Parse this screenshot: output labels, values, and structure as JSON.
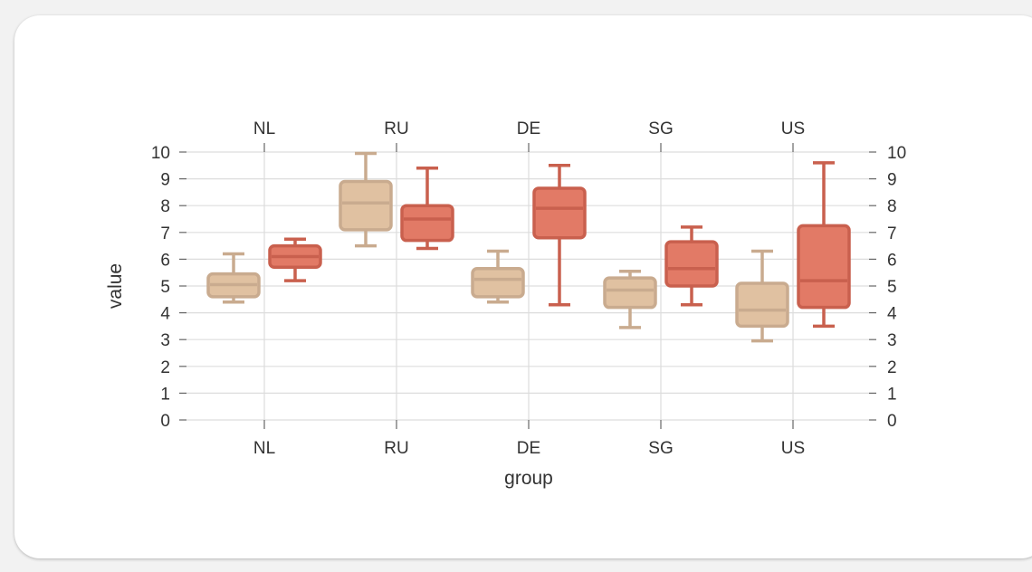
{
  "chart_data": {
    "type": "box",
    "xlabel": "group",
    "ylabel": "value",
    "ylim": [
      0,
      10
    ],
    "yticks": [
      "0",
      "1",
      "2",
      "3",
      "4",
      "5",
      "6",
      "7",
      "8",
      "9",
      "10"
    ],
    "categories": [
      "NL",
      "RU",
      "DE",
      "SG",
      "US"
    ],
    "grid": true,
    "legend": "none",
    "series": [
      {
        "color": "#e0c1a1",
        "edge_color": "#c9ab8f",
        "boxes": [
          {
            "whisker_low": 4.4,
            "q1": 4.6,
            "median": 5.05,
            "q3": 5.45,
            "whisker_high": 6.2
          },
          {
            "whisker_low": 6.5,
            "q1": 7.1,
            "median": 8.1,
            "q3": 8.9,
            "whisker_high": 9.95
          },
          {
            "whisker_low": 4.4,
            "q1": 4.6,
            "median": 5.25,
            "q3": 5.65,
            "whisker_high": 6.3
          },
          {
            "whisker_low": 3.45,
            "q1": 4.2,
            "median": 4.85,
            "q3": 5.3,
            "whisker_high": 5.55
          },
          {
            "whisker_low": 2.95,
            "q1": 3.5,
            "median": 4.1,
            "q3": 5.1,
            "whisker_high": 6.3
          }
        ]
      },
      {
        "color": "#e27a66",
        "edge_color": "#c9604e",
        "boxes": [
          {
            "whisker_low": 5.2,
            "q1": 5.7,
            "median": 6.1,
            "q3": 6.5,
            "whisker_high": 6.75
          },
          {
            "whisker_low": 6.4,
            "q1": 6.7,
            "median": 7.5,
            "q3": 8.0,
            "whisker_high": 9.4
          },
          {
            "whisker_low": 4.3,
            "q1": 6.8,
            "median": 7.9,
            "q3": 8.65,
            "whisker_high": 9.5
          },
          {
            "whisker_low": 4.3,
            "q1": 5.0,
            "median": 5.65,
            "q3": 6.65,
            "whisker_high": 7.2
          },
          {
            "whisker_low": 3.5,
            "q1": 4.2,
            "median": 5.2,
            "q3": 7.25,
            "whisker_high": 9.6
          }
        ]
      }
    ]
  }
}
